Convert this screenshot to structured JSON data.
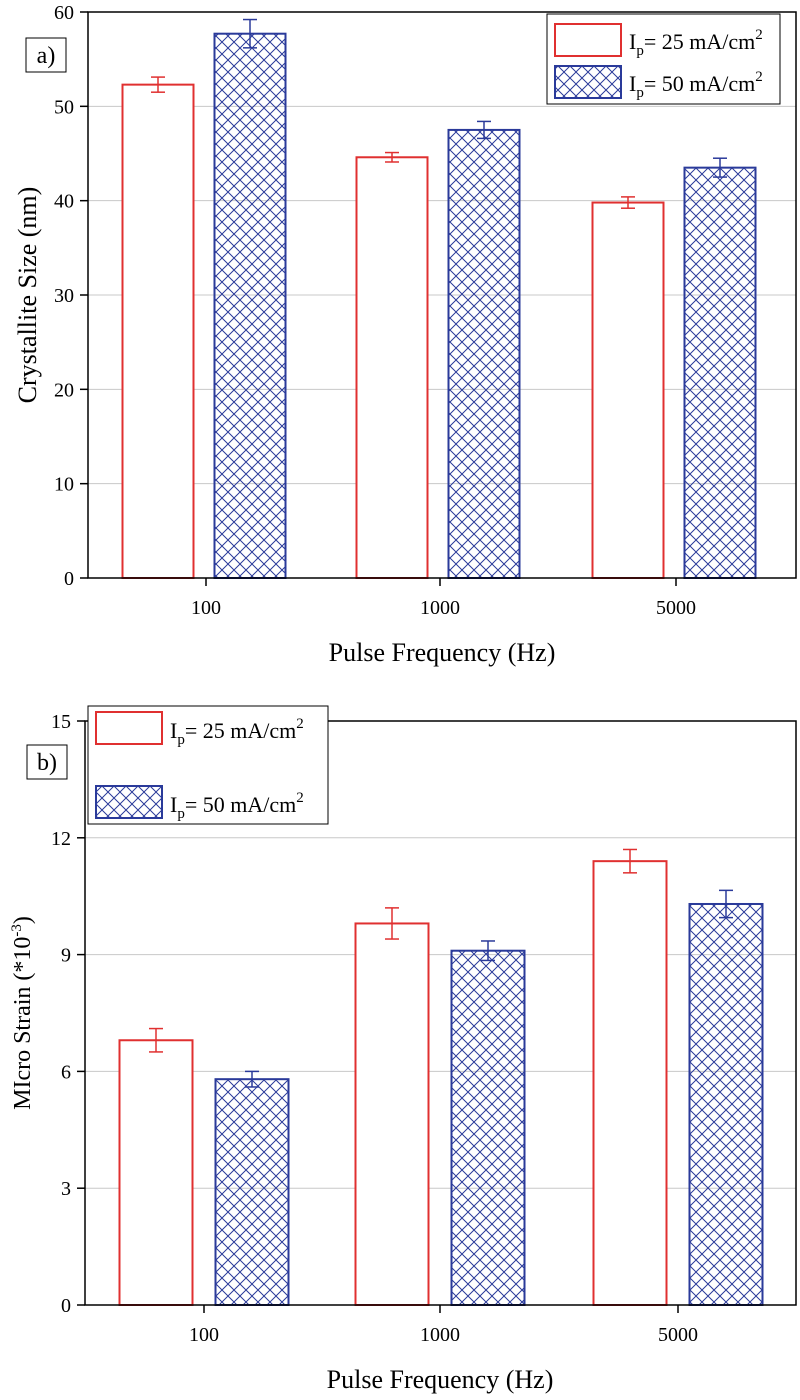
{
  "colors": {
    "series1": "#e03030",
    "series2": "#2a3a9a",
    "grid": "#c8c8c8",
    "axis": "#000000"
  },
  "chart_data": [
    {
      "type": "bar",
      "panel_label": "a)",
      "categories": [
        "100",
        "1000",
        "5000"
      ],
      "series": [
        {
          "name": "Ip= 25 mA/cm2",
          "pattern": "none",
          "values": [
            52.3,
            44.6,
            39.8
          ],
          "errors": [
            0.8,
            0.5,
            0.6
          ]
        },
        {
          "name": "Ip= 50 mA/cm2",
          "pattern": "crosshatch",
          "values": [
            57.7,
            47.5,
            43.5
          ],
          "errors": [
            1.5,
            0.9,
            1.0
          ]
        }
      ],
      "xlabel": "Pulse Frequency (Hz)",
      "ylabel": "Crystallite Size (nm)",
      "ylim": [
        0,
        60
      ],
      "yticks": [
        "0",
        "10",
        "20",
        "30",
        "40",
        "50",
        "60"
      ],
      "grid": true,
      "legend_position": "top-right"
    },
    {
      "type": "bar",
      "panel_label": "b)",
      "categories": [
        "100",
        "1000",
        "5000"
      ],
      "series": [
        {
          "name": "Ip= 25 mA/cm2",
          "pattern": "none",
          "values": [
            6.8,
            9.8,
            11.4
          ],
          "errors": [
            0.3,
            0.4,
            0.3
          ]
        },
        {
          "name": "Ip= 50 mA/cm2",
          "pattern": "crosshatch",
          "values": [
            5.8,
            9.1,
            10.3
          ],
          "errors": [
            0.2,
            0.25,
            0.35
          ]
        }
      ],
      "xlabel": "Pulse Frequency (Hz)",
      "ylabel": "MIcro Strain (*10-3)",
      "ylim": [
        0,
        15
      ],
      "yticks": [
        "0",
        "3",
        "6",
        "9",
        "12",
        "15"
      ],
      "grid": true,
      "legend_position": "top-left"
    }
  ]
}
